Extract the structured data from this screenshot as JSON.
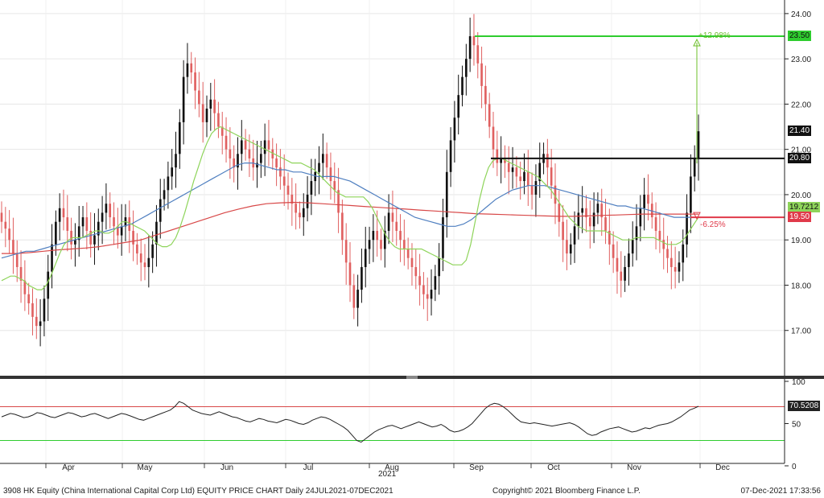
{
  "chart_data": {
    "type": "candlestick",
    "ylim": [
      16.0,
      24.3
    ],
    "yticks": [
      "24.00",
      "23.00",
      "22.00",
      "21.00",
      "20.00",
      "19.00",
      "18.00",
      "17.00"
    ],
    "ytick_values": [
      24,
      23,
      22,
      21,
      20,
      19,
      18,
      17
    ],
    "months": [
      "Apr",
      "May",
      "Jun",
      "Jul",
      "Aug",
      "Sep",
      "Oct",
      "Nov",
      "Dec"
    ],
    "year_label": "2021",
    "colors": {
      "up": "#111111",
      "down": "#e06060",
      "ma_short": "#8ed45a",
      "ma_mid": "#4f7fc0",
      "ma_long": "#d84848",
      "target": "#2ecc2e",
      "stop": "#e03a4a",
      "resist": "#111111",
      "rsi": "#222222"
    },
    "closes": [
      19.4,
      19.25,
      19.0,
      18.7,
      18.4,
      18.1,
      17.8,
      17.6,
      17.3,
      17.1,
      17.2,
      17.7,
      18.3,
      18.9,
      19.4,
      19.7,
      19.5,
      19.2,
      18.9,
      19.0,
      19.3,
      19.5,
      19.2,
      18.9,
      19.1,
      19.4,
      19.6,
      19.8,
      19.5,
      19.3,
      19.1,
      19.3,
      19.5,
      19.2,
      18.9,
      18.7,
      18.5,
      18.4,
      18.6,
      18.9,
      19.4,
      19.9,
      20.1,
      20.4,
      20.6,
      20.9,
      21.6,
      22.6,
      22.9,
      22.7,
      22.3,
      22.0,
      21.6,
      21.9,
      22.1,
      21.8,
      21.5,
      21.3,
      21.0,
      20.8,
      20.6,
      20.9,
      21.2,
      21.0,
      20.8,
      20.6,
      20.7,
      20.9,
      21.2,
      21.0,
      20.8,
      20.6,
      20.4,
      20.2,
      20.0,
      19.8,
      19.6,
      19.5,
      19.7,
      20.0,
      20.3,
      20.5,
      20.7,
      20.9,
      20.6,
      20.3,
      20.1,
      19.6,
      19.0,
      18.5,
      18.0,
      17.5,
      17.9,
      18.4,
      18.8,
      19.0,
      19.2,
      19.0,
      18.8,
      19.2,
      19.6,
      19.4,
      19.2,
      19.0,
      18.8,
      18.6,
      18.4,
      18.2,
      18.0,
      17.8,
      17.7,
      17.9,
      18.2,
      18.6,
      19.5,
      20.5,
      21.2,
      21.7,
      22.2,
      22.6,
      23.0,
      23.5,
      23.3,
      22.9,
      22.4,
      22.0,
      21.5,
      21.0,
      20.7,
      20.8,
      20.7,
      20.5,
      20.6,
      20.4,
      20.3,
      20.5,
      20.2,
      20.0,
      20.3,
      20.7,
      20.9,
      20.6,
      20.2,
      19.8,
      19.4,
      19.0,
      18.7,
      18.9,
      19.3,
      19.6,
      19.7,
      19.5,
      19.3,
      19.6,
      19.8,
      19.5,
      19.2,
      18.9,
      18.6,
      18.3,
      18.1,
      18.4,
      18.7,
      19.0,
      19.3,
      19.7,
      20.0,
      19.8,
      19.5,
      19.2,
      19.0,
      18.8,
      18.6,
      18.4,
      18.3,
      18.5,
      18.9,
      19.6,
      20.4,
      20.8,
      21.4
    ],
    "ma_short": [
      18.1,
      18.15,
      18.2,
      18.2,
      18.15,
      18.1,
      18.0,
      17.95,
      17.9,
      17.9,
      18.0,
      18.2,
      18.45,
      18.7,
      18.9,
      19.0,
      19.05,
      19.05,
      19.05,
      19.1,
      19.15,
      19.2,
      19.2,
      19.15,
      19.15,
      19.2,
      19.3,
      19.4,
      19.4,
      19.35,
      19.3,
      19.25,
      19.2,
      19.1,
      19.0,
      18.9,
      18.85,
      18.85,
      18.9,
      19.05,
      19.3,
      19.6,
      19.95,
      20.3,
      20.6,
      20.9,
      21.15,
      21.35,
      21.45,
      21.5,
      21.45,
      21.4,
      21.35,
      21.3,
      21.25,
      21.2,
      21.15,
      21.1,
      21.05,
      21.0,
      20.95,
      20.9,
      20.85,
      20.8,
      20.75,
      20.7,
      20.7,
      20.7,
      20.65,
      20.6,
      20.55,
      20.45,
      20.35,
      20.25,
      20.15,
      20.05,
      20.0,
      19.95,
      19.95,
      19.95,
      19.95,
      19.95,
      19.85,
      19.7,
      19.5,
      19.3,
      19.1,
      18.95,
      18.85,
      18.8,
      18.8,
      18.8,
      18.8,
      18.8,
      18.8,
      18.75,
      18.7,
      18.65,
      18.6,
      18.55,
      18.5,
      18.45,
      18.45,
      18.45,
      18.55,
      18.9,
      19.4,
      19.9,
      20.3,
      20.6,
      20.75,
      20.8,
      20.8,
      20.75,
      20.7,
      20.65,
      20.6,
      20.55,
      20.5,
      20.45,
      20.4,
      20.3,
      20.2,
      20.1,
      19.95,
      19.8,
      19.65,
      19.5,
      19.4,
      19.3,
      19.25,
      19.2,
      19.2,
      19.2,
      19.2,
      19.2,
      19.15,
      19.1,
      19.05,
      19.0,
      19.0,
      19.0,
      19.05,
      19.05,
      19.05,
      19.05,
      19.05,
      19.0,
      18.95,
      18.9,
      18.9,
      18.9,
      18.95,
      19.05,
      19.2,
      19.35,
      19.5
    ],
    "ma_mid": [
      18.6,
      18.65,
      18.7,
      18.75,
      18.75,
      18.8,
      18.85,
      18.9,
      18.95,
      19.0,
      19.05,
      19.1,
      19.15,
      19.2,
      19.25,
      19.3,
      19.35,
      19.45,
      19.55,
      19.65,
      19.75,
      19.85,
      19.95,
      20.05,
      20.15,
      20.25,
      20.35,
      20.45,
      20.55,
      20.65,
      20.7,
      20.7,
      20.65,
      20.6,
      20.55,
      20.55,
      20.5,
      20.5,
      20.45,
      20.4,
      20.4,
      20.4,
      20.35,
      20.3,
      20.2,
      20.1,
      20.0,
      19.9,
      19.8,
      19.7,
      19.6,
      19.5,
      19.45,
      19.4,
      19.35,
      19.3,
      19.3,
      19.35,
      19.45,
      19.6,
      19.75,
      19.9,
      20.0,
      20.1,
      20.15,
      20.2,
      20.2,
      20.2,
      20.15,
      20.1,
      20.05,
      20.0,
      19.95,
      19.9,
      19.85,
      19.8,
      19.75,
      19.75,
      19.7,
      19.7,
      19.65,
      19.6,
      19.55,
      19.5,
      19.5,
      19.5,
      19.5
    ],
    "ma_long": [
      18.7,
      18.7,
      18.72,
      18.75,
      18.78,
      18.8,
      18.82,
      18.85,
      18.9,
      18.95,
      19.0,
      19.1,
      19.2,
      19.3,
      19.4,
      19.5,
      19.6,
      19.68,
      19.75,
      19.8,
      19.82,
      19.83,
      19.82,
      19.8,
      19.78,
      19.76,
      19.74,
      19.72,
      19.7,
      19.68,
      19.66,
      19.64,
      19.62,
      19.6,
      19.58,
      19.57,
      19.56,
      19.55,
      19.54,
      19.53,
      19.52,
      19.52,
      19.53,
      19.54,
      19.55,
      19.56,
      19.57,
      19.57,
      19.57,
      19.57,
      19.57
    ],
    "price_flags": [
      {
        "label": "23.50",
        "value": 23.5,
        "bg": "#2ecc2e",
        "fg": "#111111"
      },
      {
        "label": "21.40",
        "value": 21.4,
        "bg": "#111111",
        "fg": "#ffffff"
      },
      {
        "label": "20.80",
        "value": 20.8,
        "bg": "#111111",
        "fg": "#ffffff"
      },
      {
        "label": "19.7212",
        "value": 19.7212,
        "bg": "#8ed45a",
        "fg": "#111111"
      },
      {
        "label": "19.50",
        "value": 19.5,
        "bg": "#e03a4a",
        "fg": "#ffffff"
      }
    ],
    "target_line": 23.5,
    "stop_line": 19.5,
    "resistance_line": 20.8,
    "up_pct_label": "+12.98%",
    "down_pct_label": "-6.25%",
    "rsi": {
      "ylim": [
        0,
        100
      ],
      "yticks": [
        "100",
        "50",
        "0"
      ],
      "ytick_values": [
        100,
        50,
        0
      ],
      "upper": 70,
      "lower": 30,
      "last_label": "70.5208",
      "values": [
        58,
        60,
        62,
        61,
        59,
        57,
        58,
        60,
        63,
        62,
        60,
        58,
        57,
        59,
        61,
        63,
        62,
        60,
        58,
        59,
        61,
        62,
        60,
        58,
        56,
        58,
        60,
        62,
        61,
        59,
        57,
        55,
        54,
        56,
        58,
        60,
        62,
        64,
        66,
        70,
        76,
        74,
        70,
        66,
        64,
        62,
        61,
        60,
        62,
        64,
        62,
        60,
        58,
        57,
        55,
        53,
        52,
        54,
        56,
        55,
        53,
        52,
        51,
        53,
        55,
        54,
        52,
        50,
        49,
        51,
        54,
        56,
        58,
        57,
        55,
        52,
        49,
        46,
        42,
        36,
        30,
        28,
        32,
        36,
        40,
        43,
        45,
        47,
        48,
        46,
        44,
        46,
        48,
        50,
        52,
        50,
        48,
        46,
        47,
        49,
        46,
        42,
        40,
        41,
        43,
        46,
        50,
        56,
        62,
        68,
        72,
        74,
        73,
        70,
        66,
        61,
        56,
        52,
        51,
        50,
        51,
        50,
        49,
        48,
        47,
        48,
        49,
        50,
        51,
        49,
        46,
        42,
        38,
        36,
        37,
        40,
        42,
        44,
        45,
        46,
        44,
        42,
        40,
        41,
        43,
        45,
        44,
        46,
        48,
        49,
        50,
        52,
        55,
        58,
        62,
        66,
        68,
        70.5
      ]
    }
  },
  "footer": {
    "left": "3908 HK Equity (China International Capital Corp Ltd) EQUITY PRICE CHART  Daily 24JUL2021-07DEC2021",
    "center": "Copyright© 2021 Bloomberg Finance L.P.",
    "right": "07-Dec-2021 17:33:56"
  }
}
